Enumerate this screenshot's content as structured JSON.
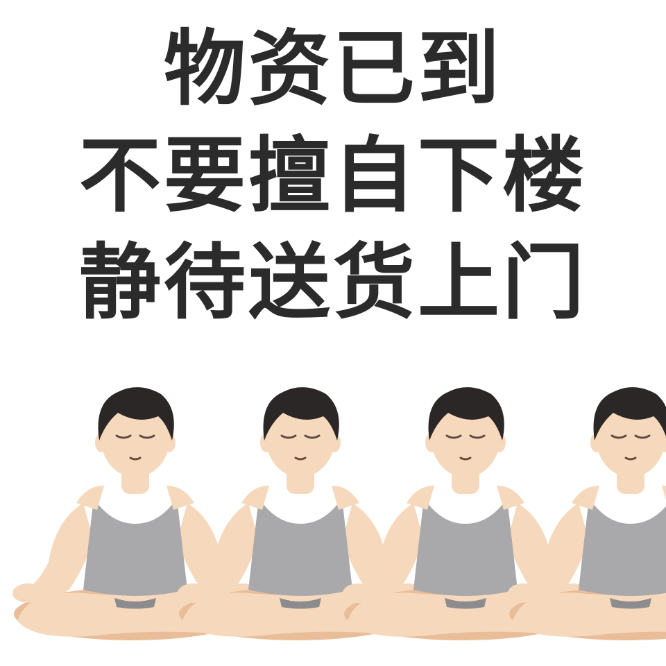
{
  "caption": {
    "lines": [
      "物资已到",
      "不要擅自下楼",
      "静待送货上门"
    ]
  },
  "figures": {
    "icon": "person-in-lotus-position-icon",
    "count": 4,
    "colors": {
      "skin": "#f6d9bd",
      "skin_shadow": "#e9bd98",
      "hair": "#2a2726",
      "tank_top": "#a9a9ab",
      "shorts": "#8c8c8e",
      "caption_text": "#2b2b2b"
    }
  }
}
